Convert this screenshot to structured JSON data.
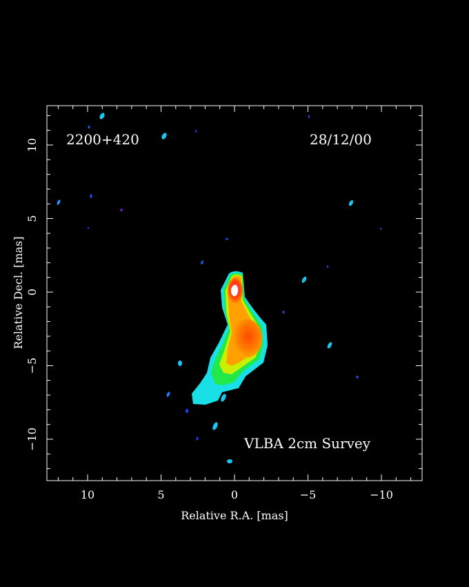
{
  "source_name": "2200+420",
  "epoch": "28/12/00",
  "survey_label": "VLBA 2cm Survey",
  "xlabel": "Relative R.A. [mas]",
  "ylabel": "Relative Decl. [mas]",
  "x_ticks": [
    "10",
    "5",
    "0",
    "−5",
    "−10"
  ],
  "y_ticks": [
    "10",
    "5",
    "0",
    "−5",
    "−10"
  ],
  "colormap": "rainbow (blue → cyan → green → yellow → orange → red → white)",
  "background_color": "#000000"
}
